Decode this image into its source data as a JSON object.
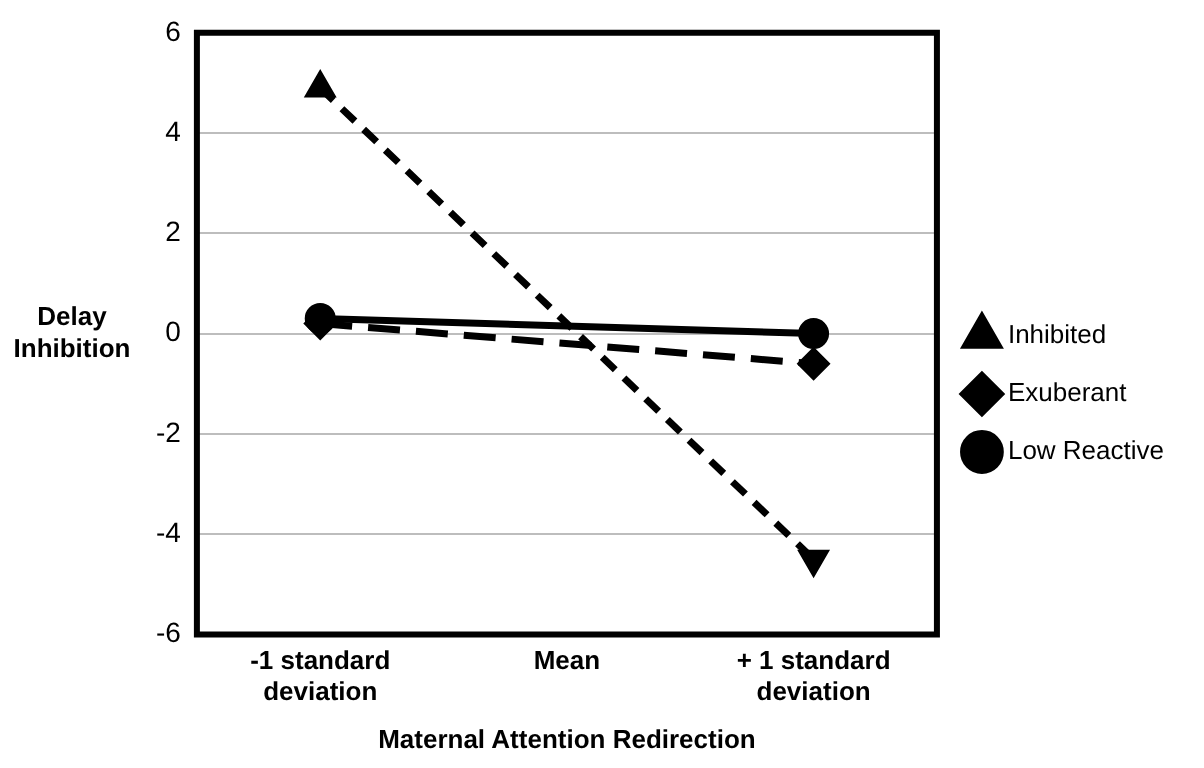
{
  "chart_data": {
    "type": "line",
    "xlabel": "Maternal Attention Redirection",
    "ylabel": "Delay Inhibition",
    "categories": [
      "-1 standard deviation",
      "Mean",
      "+ 1 standard deviation"
    ],
    "series": [
      {
        "name": "Inhibited",
        "color": "#000000",
        "values": [
          4.9,
          null,
          -4.5
        ],
        "marker": "triangle",
        "line_style": "dashed"
      },
      {
        "name": "Exuberant",
        "color": "#000000",
        "values": [
          0.2,
          null,
          -0.6
        ],
        "marker": "diamond",
        "line_style": "dashed"
      },
      {
        "name": "Low Reactive",
        "color": "#000000",
        "values": [
          0.3,
          null,
          0.0
        ],
        "marker": "circle",
        "line_style": "solid"
      }
    ],
    "ylim": [
      -6,
      6
    ],
    "yticks": [
      -6,
      -4,
      -2,
      0,
      2,
      4,
      6
    ],
    "grid": "y",
    "legend": "right"
  }
}
